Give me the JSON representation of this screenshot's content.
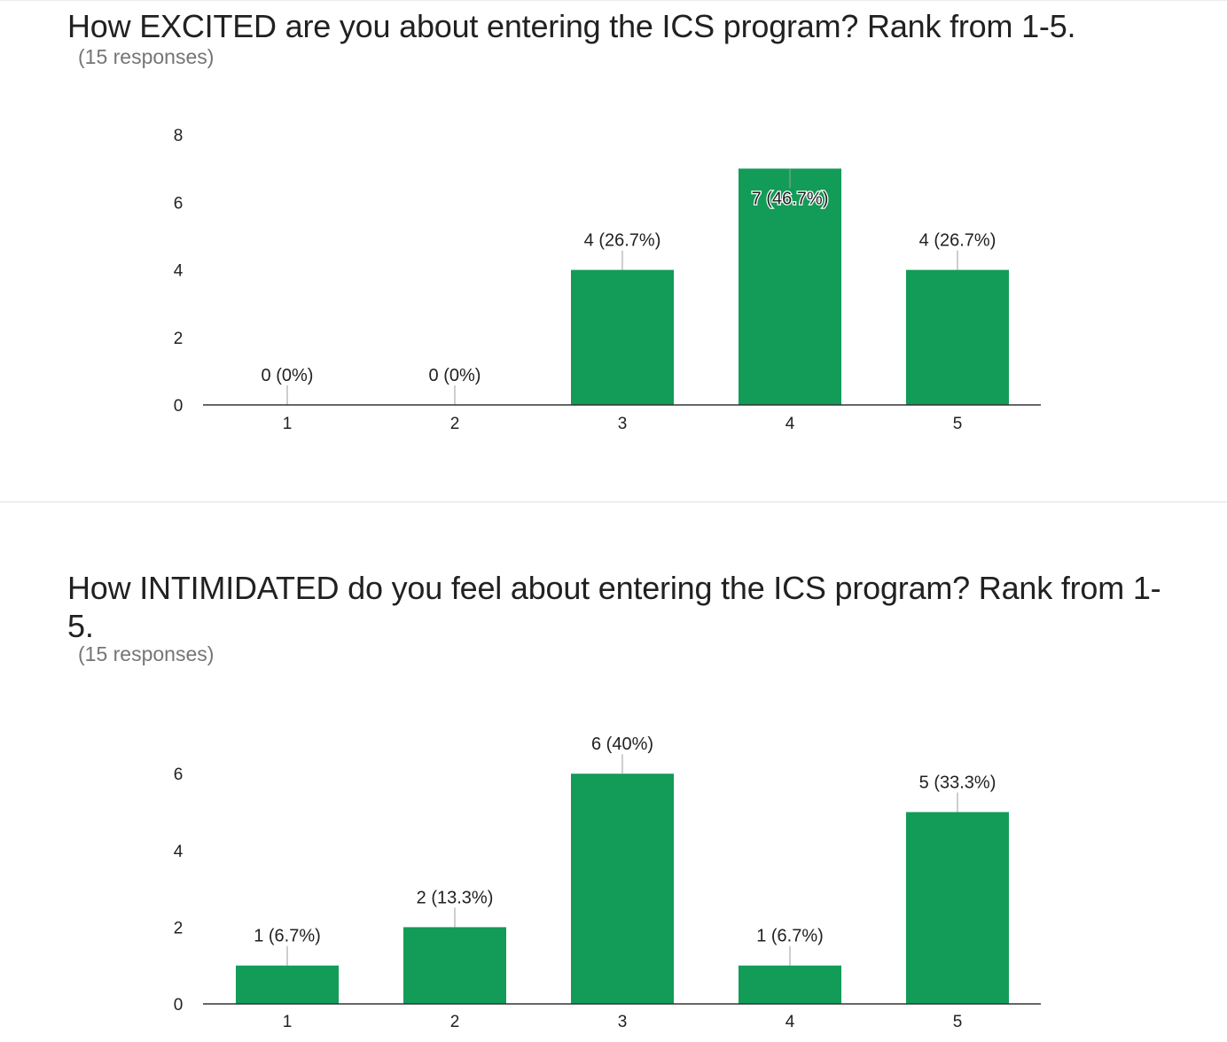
{
  "questions": [
    {
      "title": "How EXCITED are you about entering the ICS program? Rank from 1-5.",
      "responses": "(15 responses)"
    },
    {
      "title": "How INTIMIDATED do you feel about entering the ICS program? Rank from 1-5.",
      "responses": "(15 responses)"
    }
  ],
  "colors": {
    "bar": "#129c57",
    "axis": "#333333",
    "leader": "#9e9e9e"
  },
  "chart_data": [
    {
      "type": "bar",
      "title": "How EXCITED are you about entering the ICS program? Rank from 1-5.",
      "categories": [
        "1",
        "2",
        "3",
        "4",
        "5"
      ],
      "values": [
        0,
        0,
        4,
        7,
        4
      ],
      "labels": [
        "0 (0%)",
        "0 (0%)",
        "4 (26.7%)",
        "7 (46.7%)",
        "4 (26.7%)"
      ],
      "yticks": [
        0,
        2,
        4,
        6,
        8
      ],
      "ylim": [
        0,
        8
      ],
      "xlabel": "",
      "ylabel": "",
      "grid": false,
      "legend": "none"
    },
    {
      "type": "bar",
      "title": "How INTIMIDATED do you feel about entering the ICS program? Rank from 1-5.",
      "categories": [
        "1",
        "2",
        "3",
        "4",
        "5"
      ],
      "values": [
        1,
        2,
        6,
        1,
        5
      ],
      "labels": [
        "1 (6.7%)",
        "2 (13.3%)",
        "6 (40%)",
        "1 (6.7%)",
        "5 (33.3%)"
      ],
      "yticks": [
        0,
        2,
        4,
        6
      ],
      "ylim": [
        0,
        7
      ],
      "xlabel": "",
      "ylabel": "",
      "grid": false,
      "legend": "none"
    }
  ]
}
